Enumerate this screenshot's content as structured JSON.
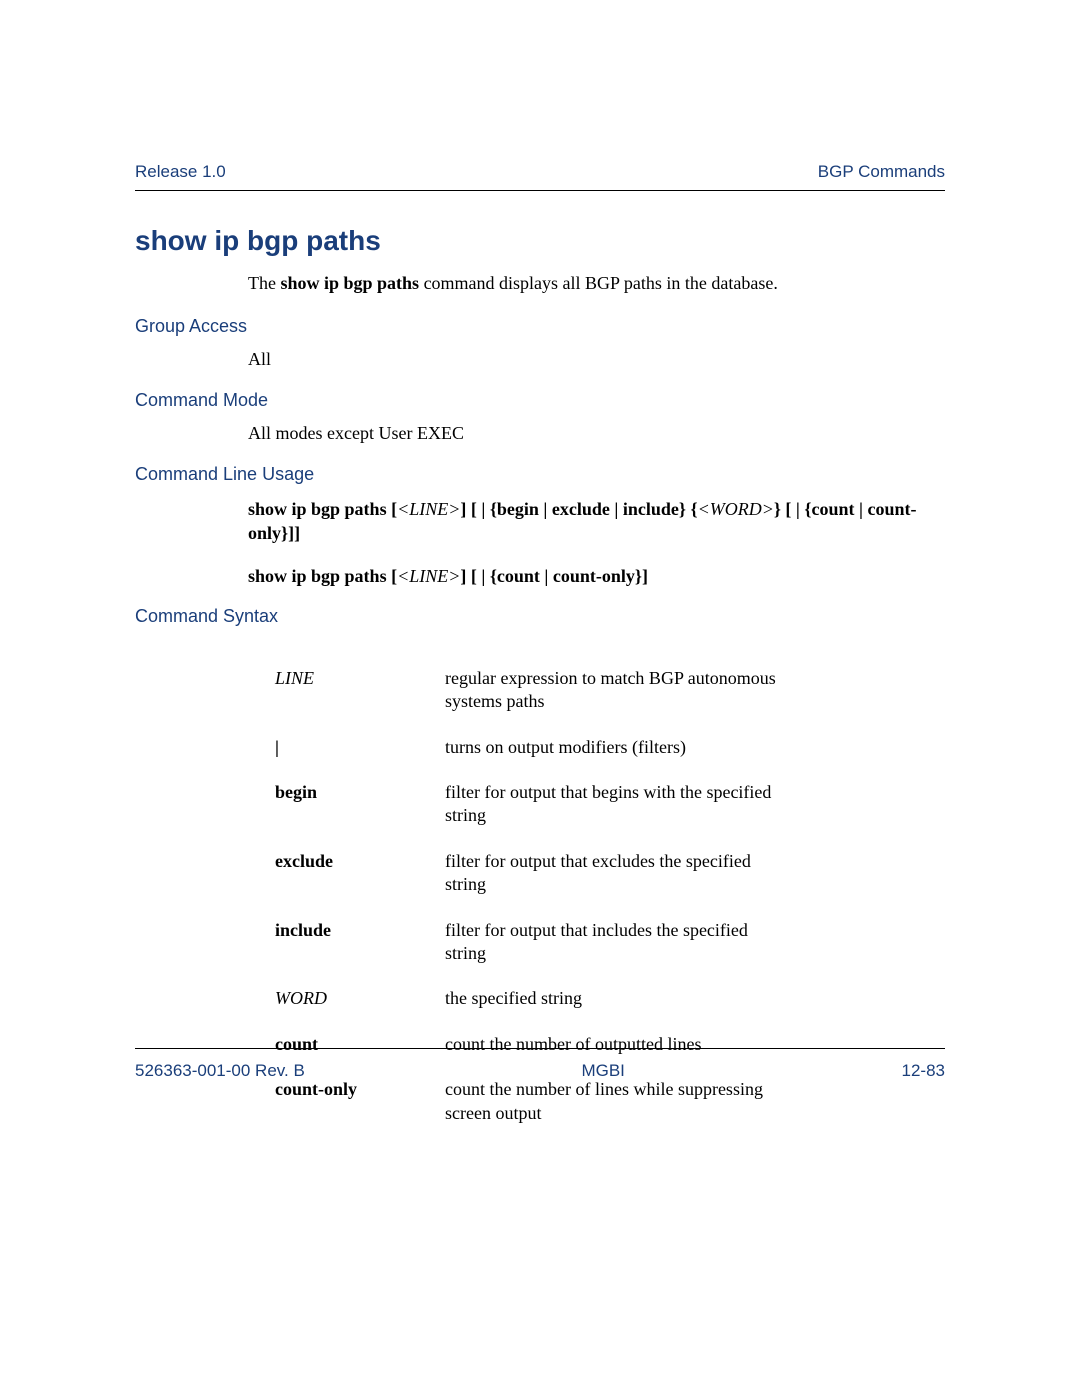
{
  "header": {
    "left": "Release 1.0",
    "right": "BGP Commands"
  },
  "title": "show ip bgp paths",
  "intro": {
    "prefix": "The ",
    "cmd": "show ip bgp paths",
    "suffix": " command displays all BGP paths in the database."
  },
  "sections": {
    "group_access": {
      "label": "Group Access",
      "value": "All"
    },
    "command_mode": {
      "label": "Command Mode",
      "value": "All modes except User EXEC"
    },
    "command_line_usage": {
      "label": "Command Line Usage",
      "line1": {
        "p1": "show ip bgp paths [",
        "i1": "<LINE>",
        "p2": "] [ | {begin | exclude | include} {",
        "i2": "<WORD>",
        "p3": "} [ | {count | count-only}]]"
      },
      "line2": {
        "p1": "show ip bgp paths [",
        "i1": "<LINE>",
        "p2": "] [ | {count | count-only}]"
      }
    },
    "command_syntax": {
      "label": "Command Syntax",
      "rows": [
        {
          "key": "LINE",
          "style": "italic",
          "desc": "regular expression to match BGP autonomous systems paths"
        },
        {
          "key": "|",
          "style": "bold",
          "desc": "turns on output modifiers (filters)"
        },
        {
          "key": "begin",
          "style": "bold",
          "desc": "filter for output that begins with the specified string"
        },
        {
          "key": "exclude",
          "style": "bold",
          "desc": "filter for output that excludes the specified string"
        },
        {
          "key": "include",
          "style": "bold",
          "desc": "filter for output that includes the specified string"
        },
        {
          "key": "WORD",
          "style": "italic",
          "desc": "the specified string"
        },
        {
          "key": "count",
          "style": "bold",
          "desc": "count the number of outputted lines"
        },
        {
          "key": "count-only",
          "style": "bold",
          "desc": "count the number of lines while suppressing screen output"
        }
      ]
    }
  },
  "footer": {
    "left": "526363-001-00 Rev. B",
    "center": "MGBI",
    "right": "12-83"
  },
  "colors": {
    "heading": "#1a3e7a",
    "text": "#000000",
    "background": "#ffffff",
    "rule": "#000000"
  }
}
